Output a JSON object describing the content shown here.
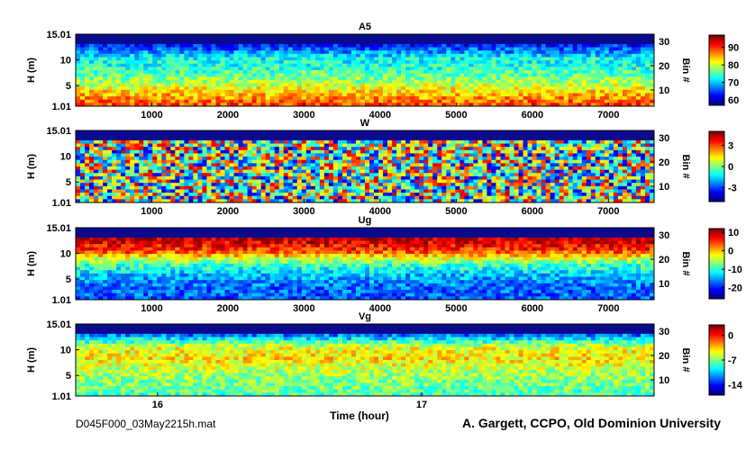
{
  "footer": {
    "filename": "D045F000_03May2215h.mat",
    "credit": "A. Gargett, CCPO, Old Dominion University",
    "xlabel": "Time (hour)"
  },
  "colors": {
    "mask_band": "#0a0a8c",
    "colormap": "jet",
    "frame": "#000000"
  },
  "chart_data": [
    {
      "type": "heatmap",
      "title": "A5",
      "ylabel": "H (m)",
      "y_ticks": [
        "15.01",
        "10",
        "5",
        "1.01"
      ],
      "y_tick_values": [
        15.01,
        10,
        5,
        1.01
      ],
      "right_label": "Bin #",
      "right_ticks": [
        "30",
        "20",
        "10"
      ],
      "x_ticks": [
        "1000",
        "2000",
        "3000",
        "4000",
        "5000",
        "6000",
        "7000"
      ],
      "x_tick_values": [
        1000,
        2000,
        3000,
        4000,
        5000,
        6000,
        7000
      ],
      "xlim": [
        0,
        7600
      ],
      "ylim": [
        1.01,
        15.01
      ],
      "colorbar_ticks": [
        "90",
        "80",
        "70",
        "60"
      ],
      "colorbar_tick_values": [
        90,
        80,
        70,
        60
      ],
      "clim": [
        57,
        97
      ],
      "pattern": "mean",
      "grad": [
        63,
        72,
        74,
        78,
        84,
        89
      ]
    },
    {
      "type": "heatmap",
      "title": "W",
      "ylabel": "H (m)",
      "y_ticks": [
        "15.01",
        "10",
        "5",
        "1.01"
      ],
      "y_tick_values": [
        15.01,
        10,
        5,
        1.01
      ],
      "right_label": "Bin #",
      "right_ticks": [
        "30",
        "20",
        "10"
      ],
      "x_ticks": [
        "1000",
        "2000",
        "3000",
        "4000",
        "5000",
        "6000",
        "7000"
      ],
      "x_tick_values": [
        1000,
        2000,
        3000,
        4000,
        5000,
        6000,
        7000
      ],
      "xlim": [
        0,
        7600
      ],
      "ylim": [
        1.01,
        15.01
      ],
      "colorbar_ticks": [
        "3",
        "0",
        "-3"
      ],
      "colorbar_tick_values": [
        3,
        0,
        -3
      ],
      "clim": [
        -5,
        5
      ],
      "pattern": "noise",
      "grad": [
        0,
        0,
        0,
        0,
        0,
        0
      ]
    },
    {
      "type": "heatmap",
      "title": "Ug",
      "ylabel": "H (m)",
      "y_ticks": [
        "15.01",
        "10",
        "5",
        "1.01"
      ],
      "y_tick_values": [
        15.01,
        10,
        5,
        1.01
      ],
      "right_label": "Bin #",
      "right_ticks": [
        "30",
        "20",
        "10"
      ],
      "x_ticks": [
        "1000",
        "2000",
        "3000",
        "4000",
        "5000",
        "6000",
        "7000"
      ],
      "x_tick_values": [
        1000,
        2000,
        3000,
        4000,
        5000,
        6000,
        7000
      ],
      "xlim": [
        0,
        7600
      ],
      "ylim": [
        1.01,
        15.01
      ],
      "colorbar_ticks": [
        "10",
        "0",
        "-10",
        "-20"
      ],
      "colorbar_tick_values": [
        10,
        0,
        -10,
        -20
      ],
      "clim": [
        -26,
        12
      ],
      "pattern": "mean",
      "grad": [
        10,
        5,
        -8,
        -14,
        -17,
        -18
      ]
    },
    {
      "type": "heatmap",
      "title": "Vg",
      "ylabel": "H (m)",
      "y_ticks": [
        "15.01",
        "10",
        "5",
        "1.01"
      ],
      "y_tick_values": [
        15.01,
        10,
        5,
        1.01
      ],
      "right_label": "Bin #",
      "right_ticks": [
        "30",
        "20",
        "10"
      ],
      "x_ticks": [
        "16",
        "17"
      ],
      "x_tick_values": [
        16,
        17
      ],
      "xlim": [
        15.69,
        17.88
      ],
      "ylim": [
        1.01,
        15.01
      ],
      "xlabel": "Time (hour)",
      "colorbar_ticks": [
        "0",
        "-7",
        "-14"
      ],
      "colorbar_tick_values": [
        0,
        -7,
        -14
      ],
      "clim": [
        -17,
        3
      ],
      "pattern": "mean",
      "grad": [
        -12,
        -5,
        -4,
        -6,
        -7,
        -8
      ]
    }
  ]
}
